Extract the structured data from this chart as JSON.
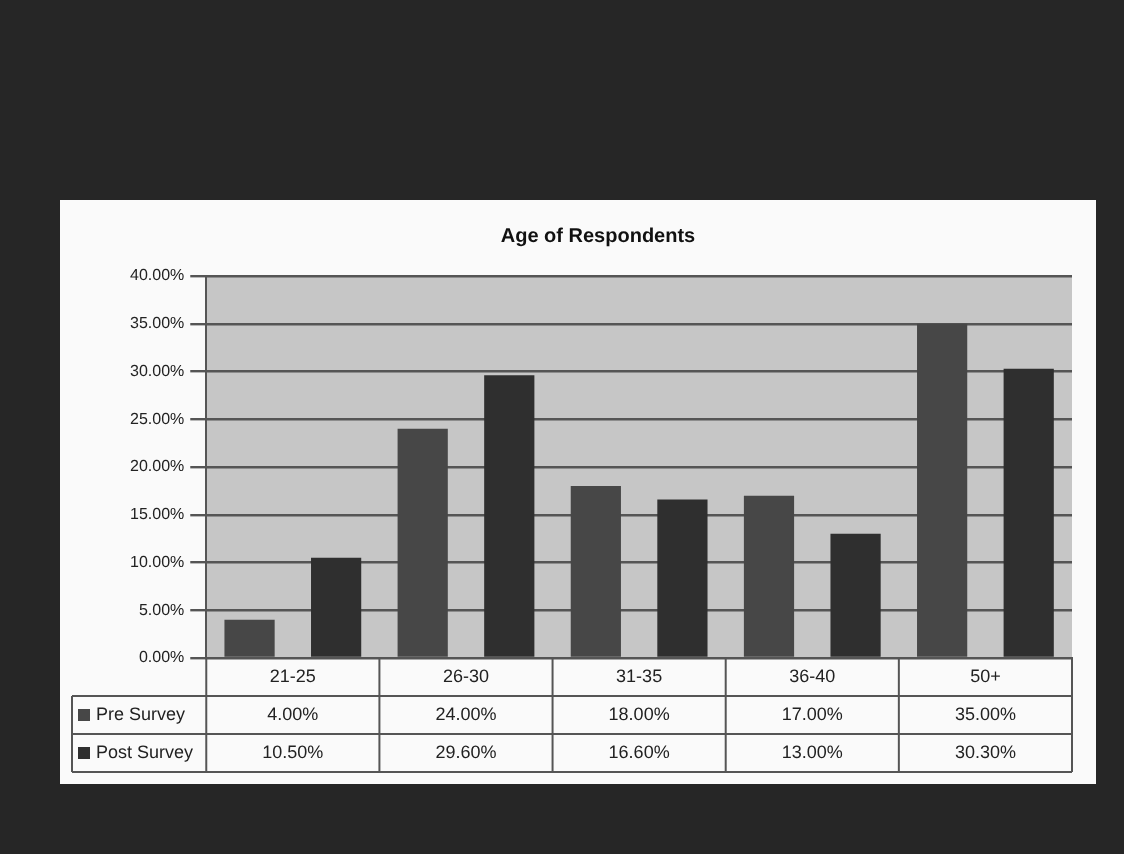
{
  "chart_data": {
    "type": "bar",
    "title": "Age of Respondents",
    "categories": [
      "21-25",
      "26-30",
      "31-35",
      "36-40",
      "50+"
    ],
    "series": [
      {
        "name": "Pre Survey",
        "color": "#474747",
        "values": [
          4,
          24,
          18,
          17,
          35
        ],
        "value_labels": [
          "4.00%",
          "24.00%",
          "18.00%",
          "17.00%",
          "35.00%"
        ]
      },
      {
        "name": "Post Survey",
        "color": "#2f2f2f",
        "values": [
          10.5,
          29.6,
          16.6,
          13,
          30.3
        ],
        "value_labels": [
          "10.50%",
          "29.60%",
          "16.60%",
          "13.00%",
          "30.30%"
        ]
      }
    ],
    "ylim": [
      0,
      40
    ],
    "yticks": [
      {
        "value": 0,
        "label": "0.00%"
      },
      {
        "value": 5,
        "label": "5.00%"
      },
      {
        "value": 10,
        "label": "10.00%"
      },
      {
        "value": 15,
        "label": "15.00%"
      },
      {
        "value": 20,
        "label": "20.00%"
      },
      {
        "value": 25,
        "label": "25.00%"
      },
      {
        "value": 30,
        "label": "30.00%"
      },
      {
        "value": 35,
        "label": "35.00%"
      },
      {
        "value": 40,
        "label": "40.00%"
      }
    ],
    "grid": "y",
    "legend": "bottom"
  }
}
